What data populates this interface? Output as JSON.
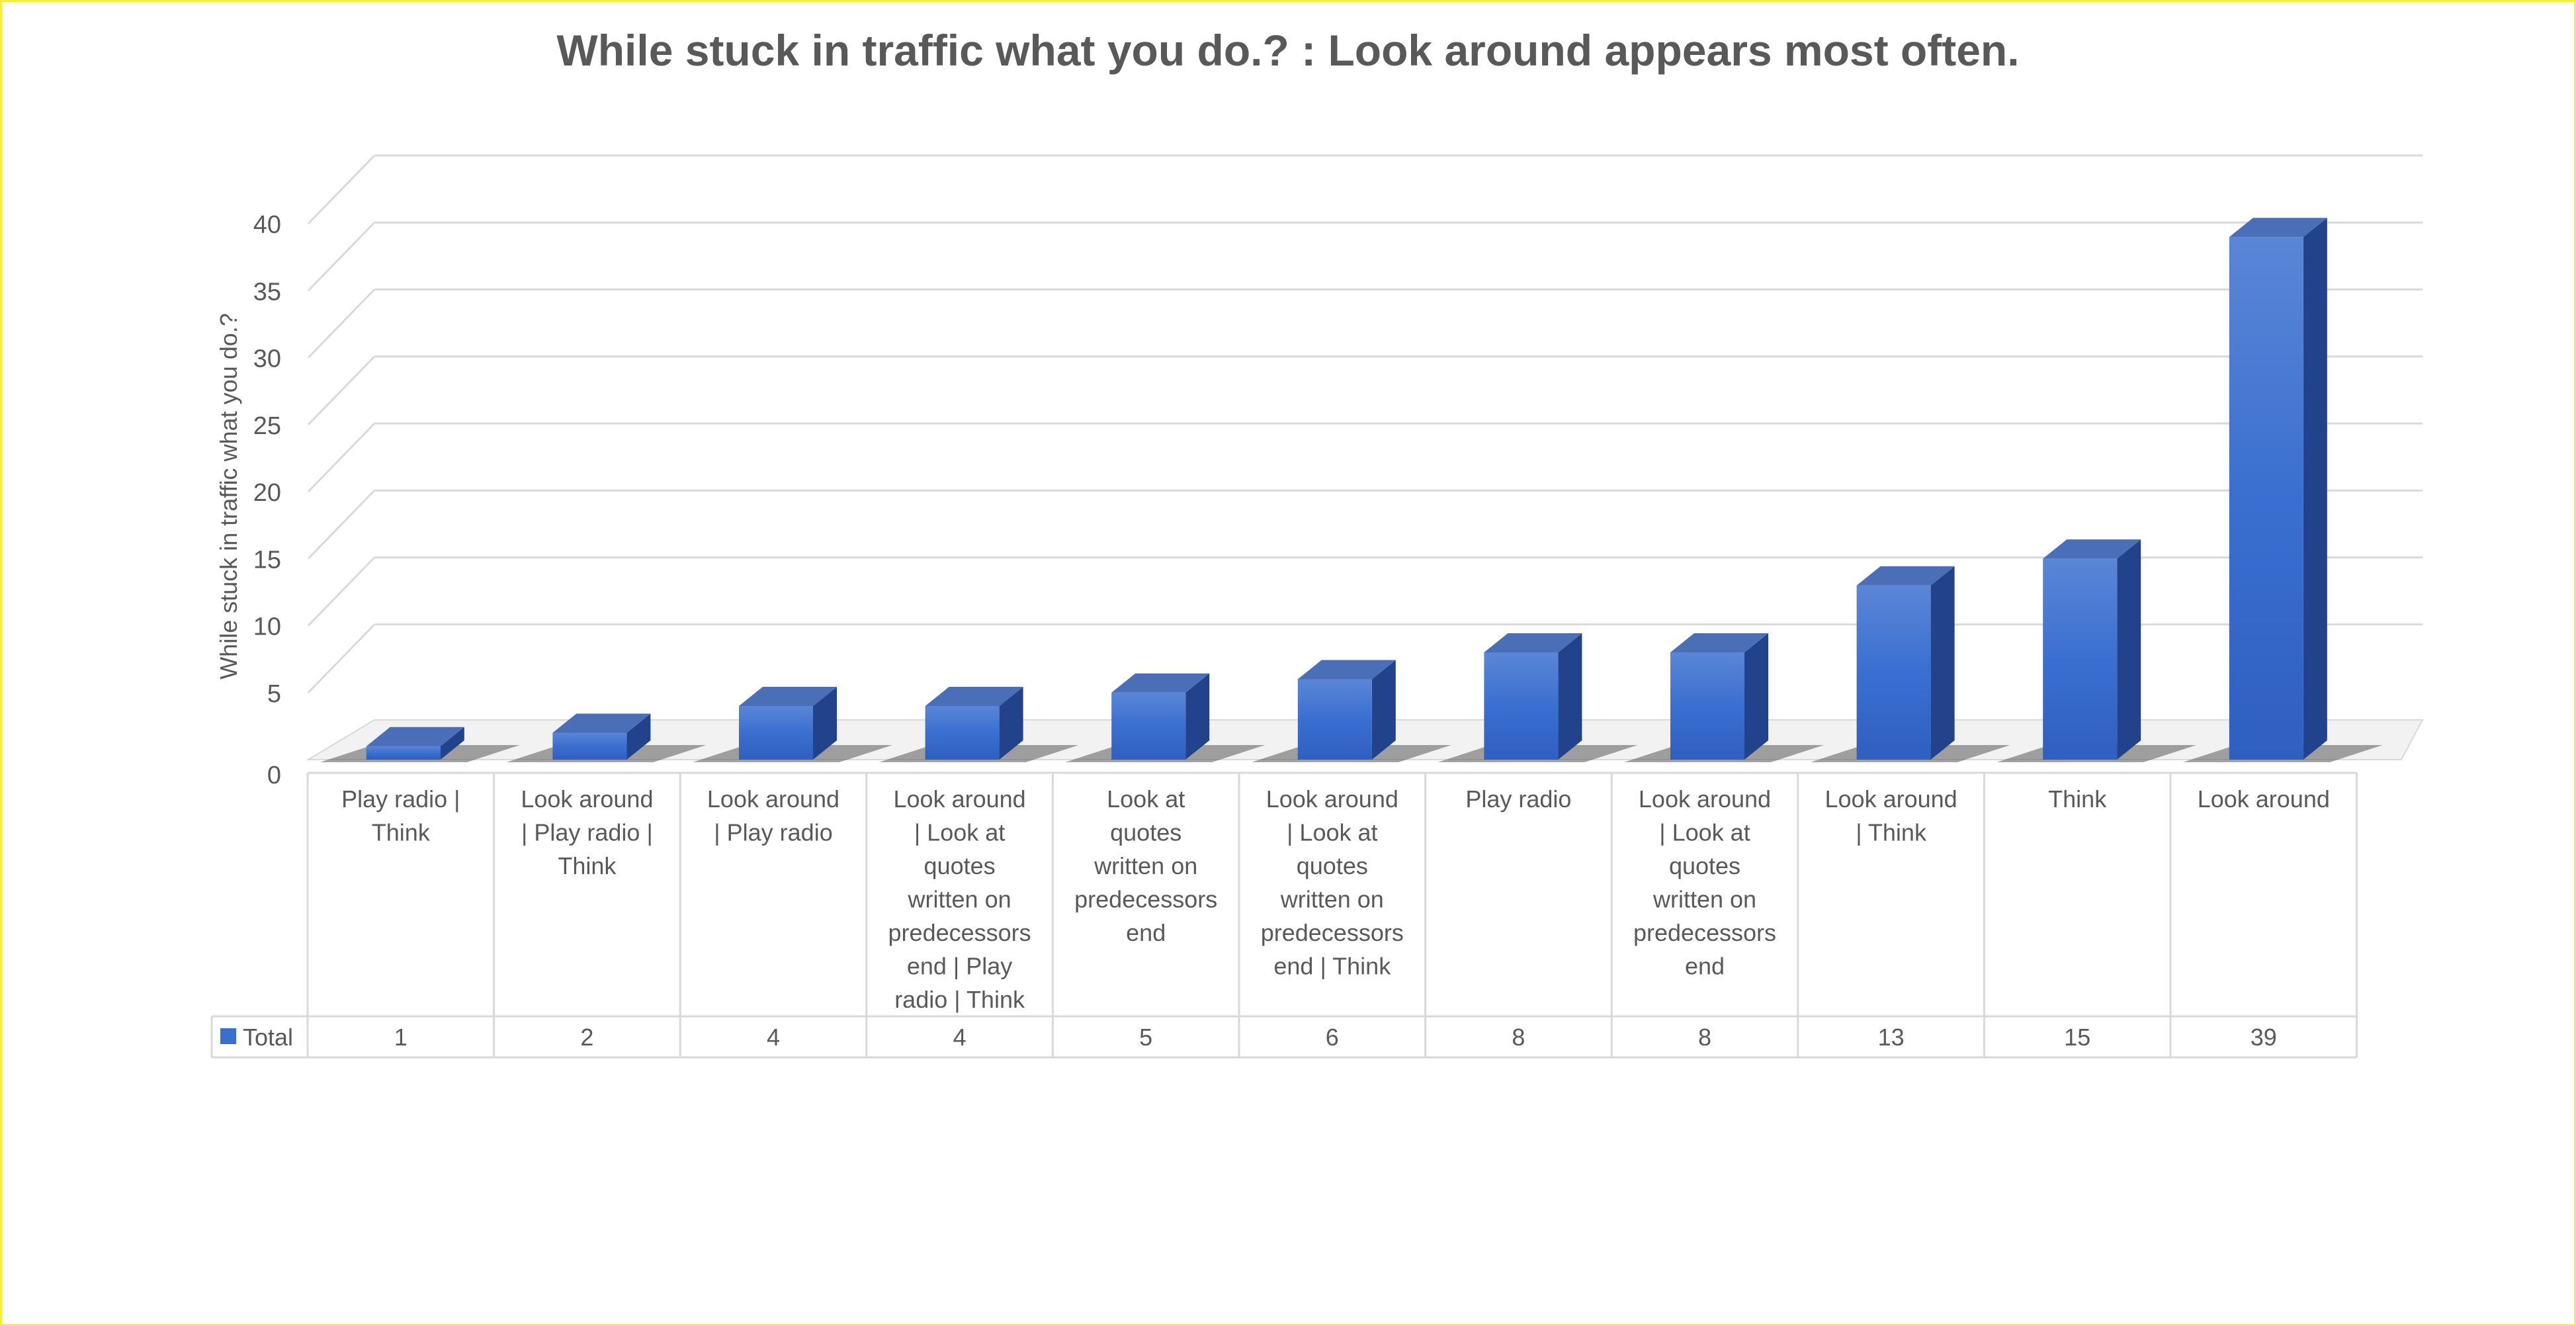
{
  "chart_data": {
    "type": "bar",
    "title": "While stuck in traffic what you do.? : Look around appears most often.",
    "ylabel": "While stuck in traffic what you do.?",
    "xlabel": "",
    "ylim": [
      0,
      40
    ],
    "yticks": [
      0,
      5,
      10,
      15,
      20,
      25,
      30,
      35,
      40
    ],
    "grid": true,
    "style": "3d-column-with-data-table",
    "categories": [
      "Play radio | Think",
      "Look around | Play radio | Think",
      "Look around | Play radio",
      "Look around | Look at quotes written on predecessors end | Play radio | Think",
      "Look at quotes written on predecessors end",
      "Look around | Look at quotes written on predecessors end | Think",
      "Play radio",
      "Look around | Look at quotes written on predecessors end",
      "Look around | Think",
      "Think",
      "Look around"
    ],
    "category_label_lines": [
      [
        "Play radio |",
        "Think"
      ],
      [
        "Look around",
        "| Play radio |",
        "Think"
      ],
      [
        "Look around",
        "| Play radio"
      ],
      [
        "Look around",
        "| Look at",
        "quotes",
        "written on",
        "predecessors",
        "end | Play",
        "radio | Think"
      ],
      [
        "Look at",
        "quotes",
        "written on",
        "predecessors",
        "end"
      ],
      [
        "Look around",
        "| Look at",
        "quotes",
        "written on",
        "predecessors",
        "end | Think"
      ],
      [
        "Play radio"
      ],
      [
        "Look around",
        "| Look at",
        "quotes",
        "written on",
        "predecessors",
        "end"
      ],
      [
        "Look around",
        "| Think"
      ],
      [
        "Think"
      ],
      [
        "Look around"
      ]
    ],
    "series": [
      {
        "name": "Total",
        "values": [
          1,
          2,
          4,
          4,
          5,
          6,
          8,
          8,
          13,
          15,
          39
        ]
      }
    ],
    "colors": {
      "bar_front": "#3a6fd0",
      "bar_side": "#23428c",
      "bar_top": "#4a6fb8",
      "grid": "#d9d9d9",
      "text": "#595959"
    }
  }
}
